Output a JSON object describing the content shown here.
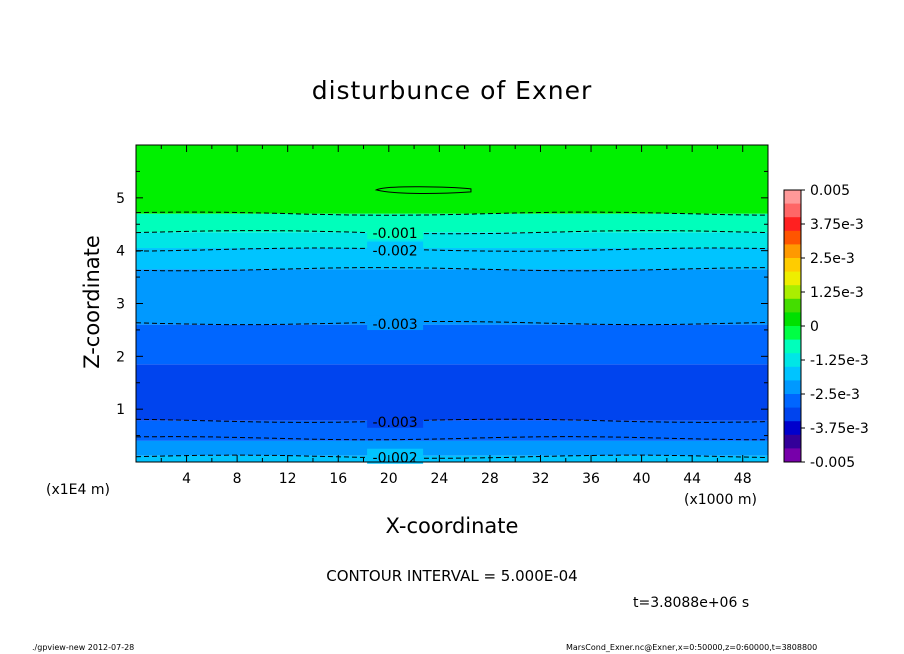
{
  "chart_data": {
    "type": "heatmap",
    "title": "disturbunce of Exner",
    "xlabel": "X-coordinate",
    "ylabel": "Z-coordinate",
    "x_unit": "(x1000 m)",
    "y_unit": "(x1E4 m)",
    "xlim": [
      0,
      50
    ],
    "ylim": [
      0,
      6
    ],
    "x_ticks": [
      4,
      8,
      12,
      16,
      20,
      24,
      28,
      32,
      36,
      40,
      44,
      48
    ],
    "y_ticks": [
      1,
      2,
      3,
      4,
      5
    ],
    "colorbar": {
      "min": -0.005,
      "max": 0.005,
      "labels": [
        "0.005",
        "3.75e-3",
        "2.5e-3",
        "1.25e-3",
        "0",
        "-1.25e-3",
        "-2.5e-3",
        "-3.75e-3",
        "-0.005"
      ],
      "label_values": [
        0.005,
        0.00375,
        0.0025,
        0.00125,
        0,
        -0.00125,
        -0.0025,
        -0.00375,
        -0.005
      ],
      "colors": [
        "#ff9999",
        "#ff6666",
        "#ff2020",
        "#ff5500",
        "#ff9900",
        "#ffcc00",
        "#eeee00",
        "#aaee00",
        "#44dd00",
        "#00e000",
        "#00ff44",
        "#00ffbb",
        "#00e6e6",
        "#00c4ff",
        "#0099ff",
        "#0066ff",
        "#0044ee",
        "#0000cc",
        "#330099",
        "#7700aa"
      ]
    },
    "bands": [
      {
        "z0": 0.0,
        "z1": 0.12,
        "value": -0.0023,
        "color": "#00c4ff"
      },
      {
        "z0": 0.12,
        "z1": 0.4,
        "value": -0.0027,
        "color": "#0099ff"
      },
      {
        "z0": 0.4,
        "z1": 0.78,
        "value": -0.0032,
        "color": "#0066ff"
      },
      {
        "z0": 0.78,
        "z1": 1.85,
        "value": -0.0036,
        "color": "#0044ee"
      },
      {
        "z0": 1.85,
        "z1": 2.6,
        "value": -0.0032,
        "color": "#0066ff"
      },
      {
        "z0": 2.6,
        "z1": 3.65,
        "value": -0.0027,
        "color": "#0099ff"
      },
      {
        "z0": 3.65,
        "z1": 4.05,
        "value": -0.0022,
        "color": "#00c4ff"
      },
      {
        "z0": 4.05,
        "z1": 4.35,
        "value": -0.0017,
        "color": "#00e6e6"
      },
      {
        "z0": 4.35,
        "z1": 4.7,
        "value": -0.0008,
        "color": "#00ffbb"
      },
      {
        "z0": 4.7,
        "z1": 6.0,
        "value": 0.0,
        "color": "#00f000"
      }
    ],
    "contours": [
      {
        "z": 0.1,
        "dashed": true,
        "label": "-0.002",
        "label_x": 20.5
      },
      {
        "z": 0.45,
        "dashed": true,
        "label": "",
        "label_x": null
      },
      {
        "z": 0.78,
        "dashed": true,
        "label": "-0.003",
        "label_x": 20.5
      },
      {
        "z": 2.63,
        "dashed": true,
        "label": "-0.003",
        "label_x": 20.5
      },
      {
        "z": 3.65,
        "dashed": true,
        "label": "",
        "label_x": null
      },
      {
        "z": 4.02,
        "dashed": true,
        "label": "-0.002",
        "label_x": 20.5
      },
      {
        "z": 4.35,
        "dashed": true,
        "label": "-0.001",
        "label_x": 20.5
      },
      {
        "z": 4.7,
        "dashed": true,
        "label": "",
        "label_x": null
      }
    ],
    "closed_contour": {
      "x_start": 19,
      "x_end": 26.5,
      "z": 5.15
    },
    "contour_interval": "CONTOUR INTERVAL = 5.000E-04",
    "time": "t=3.8088e+06 s"
  },
  "footer": {
    "left": "./gpview-new   2012-07-28",
    "right": "MarsCond_Exner.nc@Exner,x=0:50000,z=0:60000,t=3808800"
  }
}
